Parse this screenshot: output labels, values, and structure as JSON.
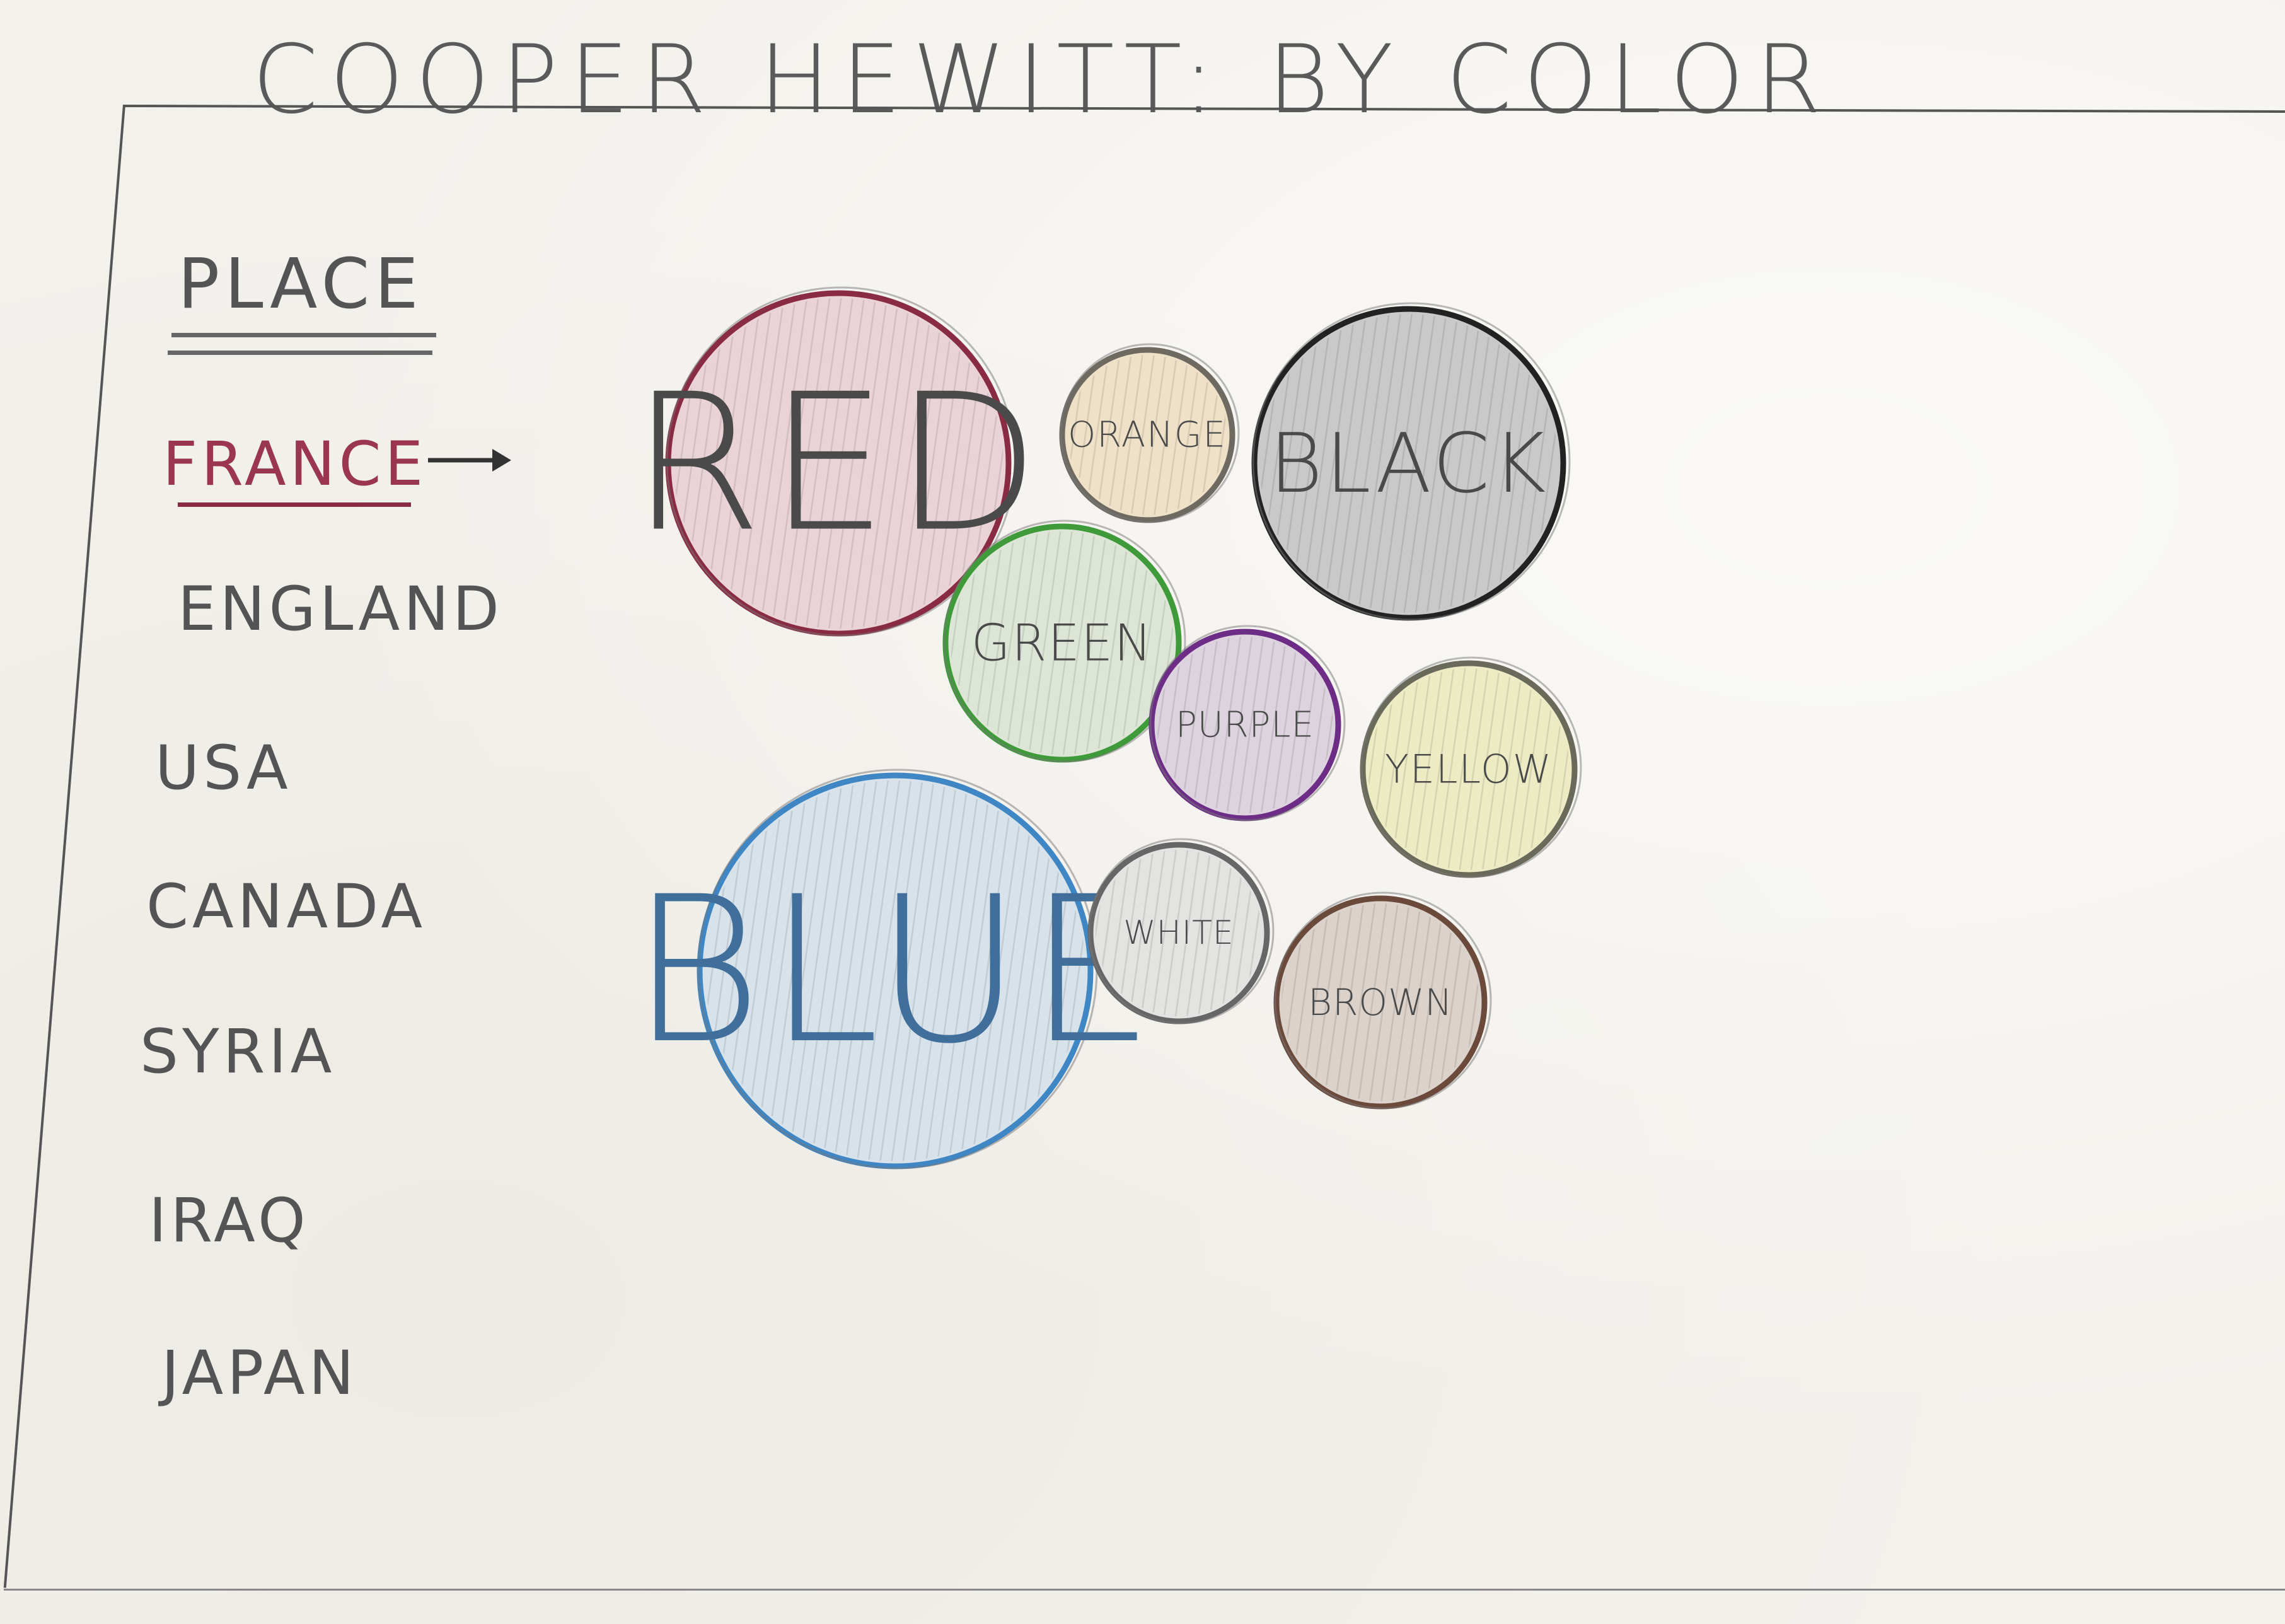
{
  "title": "COOPER HEWITT: BY COLOR",
  "sidebar": {
    "heading": "PLACE",
    "items": [
      {
        "label": "FRANCE",
        "active": true
      },
      {
        "label": "ENGLAND",
        "active": false
      },
      {
        "label": "USA",
        "active": false
      },
      {
        "label": "CANADA",
        "active": false
      },
      {
        "label": "SYRIA",
        "active": false
      },
      {
        "label": "IRAQ",
        "active": false
      },
      {
        "label": "JAPAN",
        "active": false
      }
    ]
  },
  "colors": {
    "accent": "#8a2b44",
    "ink": "#555555"
  },
  "bubbles": [
    {
      "label": "RED",
      "stroke": "#8a2b44",
      "fill": "#ead3d6"
    },
    {
      "label": "ORANGE",
      "stroke": "#6e6a62",
      "fill": "#efe0c8"
    },
    {
      "label": "BLACK",
      "stroke": "#222222",
      "fill": "#c9c9c9"
    },
    {
      "label": "GREEN",
      "stroke": "#3f9a3a",
      "fill": "#dde6d6"
    },
    {
      "label": "PURPLE",
      "stroke": "#6d2c86",
      "fill": "#ddd3df"
    },
    {
      "label": "YELLOW",
      "stroke": "#6a6a5a",
      "fill": "#ecebc4"
    },
    {
      "label": "BLUE",
      "stroke": "#3f86c4",
      "fill": "#d8e2ea"
    },
    {
      "label": "WHITE",
      "stroke": "#666666",
      "fill": "#e3e3e1"
    },
    {
      "label": "BROWN",
      "stroke": "#6b4a3c",
      "fill": "#dcd2cc"
    }
  ]
}
